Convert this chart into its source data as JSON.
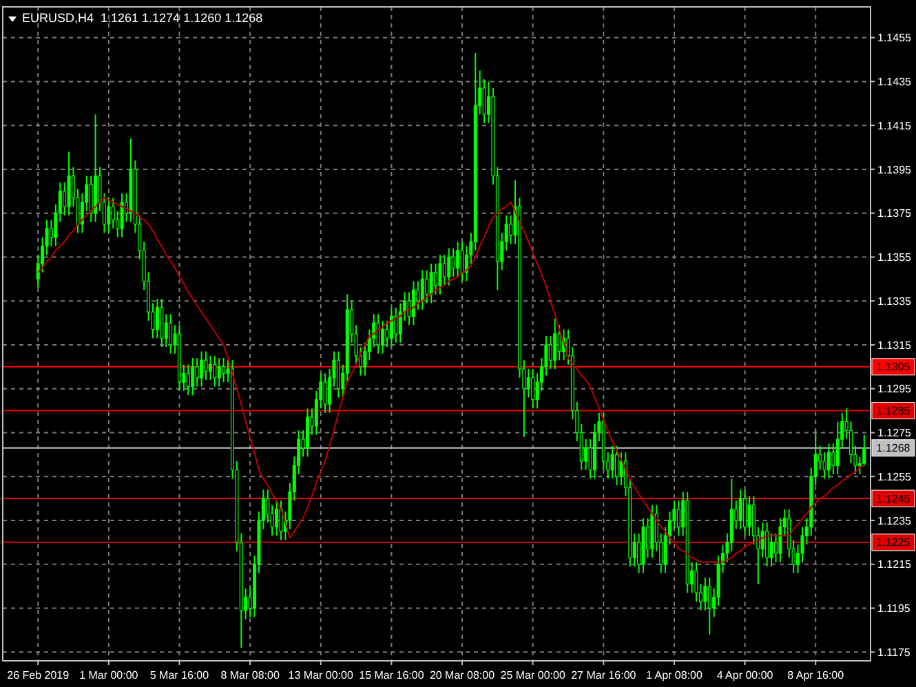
{
  "chart_data": {
    "type": "candlestick",
    "title": "EURUSD,H4  1.1261 1.1274 1.1260 1.1268",
    "categories": [
      "26 Feb 2019",
      null,
      null,
      null,
      null,
      null,
      null,
      null,
      null,
      null,
      null,
      null,
      null,
      null,
      null,
      null,
      "1 Mar 00:00",
      null,
      null,
      null,
      null,
      null,
      null,
      null,
      null,
      null,
      null,
      null,
      null,
      null,
      null,
      null,
      "5 Mar 16:00",
      null,
      null,
      null,
      null,
      null,
      null,
      null,
      null,
      null,
      null,
      null,
      null,
      null,
      null,
      null,
      "8 Mar 08:00",
      null,
      null,
      null,
      null,
      null,
      null,
      null,
      null,
      null,
      null,
      null,
      null,
      null,
      null,
      null,
      "13 Mar 00:00",
      null,
      null,
      null,
      null,
      null,
      null,
      null,
      null,
      null,
      null,
      null,
      null,
      null,
      null,
      null,
      "15 Mar 16:00",
      null,
      null,
      null,
      null,
      null,
      null,
      null,
      null,
      null,
      null,
      null,
      null,
      null,
      null,
      null,
      "20 Mar 08:00",
      null,
      null,
      null,
      null,
      null,
      null,
      null,
      null,
      null,
      null,
      null,
      null,
      null,
      null,
      null,
      "25 Mar 00:00",
      null,
      null,
      null,
      null,
      null,
      null,
      null,
      null,
      null,
      null,
      null,
      null,
      null,
      null,
      null,
      "27 Mar 16:00",
      null,
      null,
      null,
      null,
      null,
      null,
      null,
      null,
      null,
      null,
      null,
      null,
      null,
      null,
      null,
      "1 Apr 08:00",
      null,
      null,
      null,
      null,
      null,
      null,
      null,
      null,
      null,
      null,
      null,
      null,
      null,
      null,
      null,
      "4 Apr 00:00",
      null,
      null,
      null,
      null,
      null,
      null,
      null,
      null,
      null,
      null,
      null,
      null,
      null,
      null,
      null,
      "8 Apr 16:00",
      null,
      null,
      null,
      null,
      null,
      null,
      null,
      null,
      null,
      null,
      null
    ],
    "series": [
      {
        "color": "#00ff00",
        "ohlc": [
          [
            1.1345,
            1.1356,
            1.1341,
            1.1352
          ],
          [
            1.1352,
            1.1364,
            1.1348,
            1.136
          ],
          [
            1.136,
            1.1372,
            1.1356,
            1.1368
          ],
          [
            1.1368,
            1.1372,
            1.136,
            1.1364
          ],
          [
            1.1364,
            1.1379,
            1.136,
            1.1375
          ],
          [
            1.1375,
            1.1389,
            1.1371,
            1.1385
          ],
          [
            1.1385,
            1.1389,
            1.1374,
            1.1378
          ],
          [
            1.1378,
            1.1403,
            1.1374,
            1.1392
          ],
          [
            1.1392,
            1.1396,
            1.1378,
            1.1382
          ],
          [
            1.1382,
            1.1386,
            1.1366,
            1.137
          ],
          [
            1.137,
            1.1384,
            1.1366,
            1.138
          ],
          [
            1.138,
            1.1392,
            1.1376,
            1.1388
          ],
          [
            1.1388,
            1.1392,
            1.1371,
            1.1375
          ],
          [
            1.1375,
            1.142,
            1.1371,
            1.1392
          ],
          [
            1.1392,
            1.1396,
            1.1376,
            1.138
          ],
          [
            1.138,
            1.1384,
            1.1366,
            1.137
          ],
          [
            1.137,
            1.1382,
            1.1366,
            1.1378
          ],
          [
            1.1378,
            1.1382,
            1.1368,
            1.1372
          ],
          [
            1.1372,
            1.1376,
            1.1364,
            1.1368
          ],
          [
            1.1368,
            1.1384,
            1.1364,
            1.138
          ],
          [
            1.138,
            1.1384,
            1.1371,
            1.1375
          ],
          [
            1.1375,
            1.1409,
            1.1371,
            1.1395
          ],
          [
            1.1395,
            1.1399,
            1.1366,
            1.137
          ],
          [
            1.137,
            1.1374,
            1.1354,
            1.1358
          ],
          [
            1.1358,
            1.1362,
            1.134,
            1.1344
          ],
          [
            1.1344,
            1.1348,
            1.1326,
            1.133
          ],
          [
            1.133,
            1.1334,
            1.1318,
            1.1322
          ],
          [
            1.1322,
            1.1336,
            1.1318,
            1.1332
          ],
          [
            1.1332,
            1.1336,
            1.1314,
            1.1318
          ],
          [
            1.1318,
            1.1329,
            1.1314,
            1.1325
          ],
          [
            1.1325,
            1.1329,
            1.1311,
            1.1315
          ],
          [
            1.1315,
            1.1324,
            1.1311,
            1.132
          ],
          [
            1.132,
            1.1324,
            1.1294,
            1.1298
          ],
          [
            1.1298,
            1.1306,
            1.1294,
            1.1302
          ],
          [
            1.1302,
            1.1306,
            1.1292,
            1.1296
          ],
          [
            1.1296,
            1.1309,
            1.1292,
            1.1305
          ],
          [
            1.1305,
            1.1309,
            1.1296,
            1.13
          ],
          [
            1.13,
            1.1312,
            1.1296,
            1.1308
          ],
          [
            1.1308,
            1.1312,
            1.1299,
            1.1303
          ],
          [
            1.1303,
            1.131,
            1.1299,
            1.1306
          ],
          [
            1.1306,
            1.131,
            1.1296,
            1.13
          ],
          [
            1.13,
            1.1309,
            1.1296,
            1.1305
          ],
          [
            1.1305,
            1.1309,
            1.1298,
            1.1302
          ],
          [
            1.1302,
            1.1308,
            1.1298,
            1.1304
          ],
          [
            1.1304,
            1.1308,
            1.1254,
            1.1258
          ],
          [
            1.1258,
            1.1262,
            1.1221,
            1.1225
          ],
          [
            1.1225,
            1.1229,
            1.1177,
            1.1194
          ],
          [
            1.1194,
            1.1204,
            1.119,
            1.12
          ],
          [
            1.12,
            1.1204,
            1.1191,
            1.1195
          ],
          [
            1.1195,
            1.1219,
            1.1191,
            1.1215
          ],
          [
            1.1215,
            1.1239,
            1.1211,
            1.1235
          ],
          [
            1.1235,
            1.1249,
            1.1231,
            1.1245
          ],
          [
            1.1245,
            1.1249,
            1.1234,
            1.1238
          ],
          [
            1.1238,
            1.1242,
            1.1228,
            1.1232
          ],
          [
            1.1232,
            1.1244,
            1.1228,
            1.124
          ],
          [
            1.124,
            1.1244,
            1.1226,
            1.123
          ],
          [
            1.123,
            1.1239,
            1.1226,
            1.1235
          ],
          [
            1.1235,
            1.1252,
            1.1231,
            1.1248
          ],
          [
            1.1248,
            1.1264,
            1.1244,
            1.126
          ],
          [
            1.126,
            1.1276,
            1.1256,
            1.1272
          ],
          [
            1.1272,
            1.1276,
            1.1264,
            1.1268
          ],
          [
            1.1268,
            1.1286,
            1.1264,
            1.1282
          ],
          [
            1.1282,
            1.1286,
            1.1274,
            1.1278
          ],
          [
            1.1278,
            1.1294,
            1.1274,
            1.129
          ],
          [
            1.129,
            1.1302,
            1.1286,
            1.1298
          ],
          [
            1.1298,
            1.1302,
            1.1284,
            1.1288
          ],
          [
            1.1288,
            1.1304,
            1.1284,
            1.13
          ],
          [
            1.13,
            1.1312,
            1.1296,
            1.1308
          ],
          [
            1.1308,
            1.1312,
            1.1291,
            1.1295
          ],
          [
            1.1295,
            1.1306,
            1.1291,
            1.1302
          ],
          [
            1.1302,
            1.1338,
            1.1298,
            1.1331
          ],
          [
            1.1331,
            1.1335,
            1.1316,
            1.132
          ],
          [
            1.132,
            1.1324,
            1.1306,
            1.131
          ],
          [
            1.131,
            1.1314,
            1.1301,
            1.1305
          ],
          [
            1.1305,
            1.1316,
            1.1301,
            1.1312
          ],
          [
            1.1312,
            1.1322,
            1.1308,
            1.1318
          ],
          [
            1.1318,
            1.1329,
            1.1314,
            1.1325
          ],
          [
            1.1325,
            1.1329,
            1.1311,
            1.1315
          ],
          [
            1.1315,
            1.1326,
            1.1311,
            1.1322
          ],
          [
            1.1322,
            1.1326,
            1.1314,
            1.1318
          ],
          [
            1.1318,
            1.1332,
            1.1314,
            1.1328
          ],
          [
            1.1328,
            1.1332,
            1.1316,
            1.132
          ],
          [
            1.132,
            1.1334,
            1.1316,
            1.133
          ],
          [
            1.133,
            1.1339,
            1.1326,
            1.1335
          ],
          [
            1.1335,
            1.1339,
            1.1324,
            1.1328
          ],
          [
            1.1328,
            1.1344,
            1.1324,
            1.134
          ],
          [
            1.134,
            1.1344,
            1.1331,
            1.1335
          ],
          [
            1.1335,
            1.1349,
            1.1331,
            1.1345
          ],
          [
            1.1345,
            1.1349,
            1.1334,
            1.1338
          ],
          [
            1.1338,
            1.1352,
            1.1334,
            1.1348
          ],
          [
            1.1348,
            1.1352,
            1.1338,
            1.1342
          ],
          [
            1.1342,
            1.1356,
            1.1338,
            1.1352
          ],
          [
            1.1352,
            1.1356,
            1.1342,
            1.1346
          ],
          [
            1.1346,
            1.1359,
            1.1342,
            1.1355
          ],
          [
            1.1355,
            1.1359,
            1.1346,
            1.135
          ],
          [
            1.135,
            1.1362,
            1.1346,
            1.1358
          ],
          [
            1.1358,
            1.1362,
            1.1344,
            1.1348
          ],
          [
            1.1348,
            1.136,
            1.1344,
            1.1356
          ],
          [
            1.1356,
            1.1366,
            1.1352,
            1.1362
          ],
          [
            1.1362,
            1.1448,
            1.1358,
            1.1424
          ],
          [
            1.1424,
            1.144,
            1.142,
            1.1432
          ],
          [
            1.1432,
            1.1436,
            1.1416,
            1.142
          ],
          [
            1.142,
            1.1435,
            1.1416,
            1.1428
          ],
          [
            1.1428,
            1.1432,
            1.1388,
            1.1392
          ],
          [
            1.1392,
            1.1396,
            1.134,
            1.1353
          ],
          [
            1.1353,
            1.1366,
            1.1349,
            1.1362
          ],
          [
            1.1362,
            1.1374,
            1.1358,
            1.137
          ],
          [
            1.137,
            1.1374,
            1.1361,
            1.1365
          ],
          [
            1.1365,
            1.139,
            1.1361,
            1.1378
          ],
          [
            1.1378,
            1.1382,
            1.13,
            1.1304
          ],
          [
            1.1304,
            1.1308,
            1.1273,
            1.1295
          ],
          [
            1.1295,
            1.1304,
            1.1291,
            1.13
          ],
          [
            1.13,
            1.1304,
            1.1286,
            1.129
          ],
          [
            1.129,
            1.1302,
            1.1286,
            1.1298
          ],
          [
            1.1298,
            1.1309,
            1.1294,
            1.1305
          ],
          [
            1.1305,
            1.1319,
            1.1301,
            1.1315
          ],
          [
            1.1315,
            1.1319,
            1.1304,
            1.1308
          ],
          [
            1.1308,
            1.1327,
            1.1304,
            1.132
          ],
          [
            1.132,
            1.1324,
            1.1308,
            1.1312
          ],
          [
            1.1312,
            1.1322,
            1.1308,
            1.1318
          ],
          [
            1.1318,
            1.1322,
            1.1306,
            1.131
          ],
          [
            1.131,
            1.1314,
            1.1281,
            1.1285
          ],
          [
            1.1285,
            1.1289,
            1.1271,
            1.1275
          ],
          [
            1.1275,
            1.1279,
            1.1258,
            1.1262
          ],
          [
            1.1262,
            1.1272,
            1.1258,
            1.1268
          ],
          [
            1.1268,
            1.1272,
            1.1254,
            1.1258
          ],
          [
            1.1258,
            1.1279,
            1.1254,
            1.1275
          ],
          [
            1.1275,
            1.1284,
            1.1271,
            1.128
          ],
          [
            1.128,
            1.1284,
            1.1258,
            1.1262
          ],
          [
            1.1262,
            1.1266,
            1.1254,
            1.1258
          ],
          [
            1.1258,
            1.1269,
            1.1254,
            1.1265
          ],
          [
            1.1265,
            1.1269,
            1.1251,
            1.1255
          ],
          [
            1.1255,
            1.1266,
            1.1251,
            1.1262
          ],
          [
            1.1262,
            1.1266,
            1.1246,
            1.125
          ],
          [
            1.125,
            1.1254,
            1.1214,
            1.1218
          ],
          [
            1.1218,
            1.1229,
            1.1214,
            1.1225
          ],
          [
            1.1225,
            1.1229,
            1.1211,
            1.1215
          ],
          [
            1.1215,
            1.1236,
            1.1211,
            1.1232
          ],
          [
            1.1232,
            1.1236,
            1.1218,
            1.1222
          ],
          [
            1.1222,
            1.1242,
            1.1218,
            1.1238
          ],
          [
            1.1238,
            1.1242,
            1.1221,
            1.1225
          ],
          [
            1.1225,
            1.1229,
            1.1211,
            1.1215
          ],
          [
            1.1215,
            1.1232,
            1.1211,
            1.1228
          ],
          [
            1.1228,
            1.1239,
            1.1224,
            1.1235
          ],
          [
            1.1235,
            1.1244,
            1.1231,
            1.124
          ],
          [
            1.124,
            1.1244,
            1.1228,
            1.1232
          ],
          [
            1.1232,
            1.1248,
            1.1228,
            1.1244
          ],
          [
            1.1244,
            1.1248,
            1.1202,
            1.1206
          ],
          [
            1.1206,
            1.1216,
            1.1202,
            1.1212
          ],
          [
            1.1212,
            1.1216,
            1.1198,
            1.1202
          ],
          [
            1.1202,
            1.1206,
            1.1194,
            1.1198
          ],
          [
            1.1198,
            1.1209,
            1.1194,
            1.1205
          ],
          [
            1.1205,
            1.1209,
            1.1183,
            1.1195
          ],
          [
            1.1195,
            1.1204,
            1.1191,
            1.12
          ],
          [
            1.12,
            1.1219,
            1.1196,
            1.1215
          ],
          [
            1.1215,
            1.1224,
            1.1211,
            1.122
          ],
          [
            1.122,
            1.1229,
            1.1216,
            1.1225
          ],
          [
            1.1225,
            1.1254,
            1.1221,
            1.124
          ],
          [
            1.124,
            1.1244,
            1.1231,
            1.1235
          ],
          [
            1.1235,
            1.1249,
            1.1231,
            1.1245
          ],
          [
            1.1245,
            1.1249,
            1.1228,
            1.1232
          ],
          [
            1.1232,
            1.1246,
            1.1228,
            1.1242
          ],
          [
            1.1242,
            1.1246,
            1.1224,
            1.1228
          ],
          [
            1.1228,
            1.1232,
            1.1206,
            1.1222
          ],
          [
            1.1222,
            1.1234,
            1.1218,
            1.123
          ],
          [
            1.123,
            1.1234,
            1.1214,
            1.1218
          ],
          [
            1.1218,
            1.1229,
            1.1214,
            1.1225
          ],
          [
            1.1225,
            1.1229,
            1.1216,
            1.122
          ],
          [
            1.122,
            1.1236,
            1.1216,
            1.1232
          ],
          [
            1.1232,
            1.124,
            1.1228,
            1.1236
          ],
          [
            1.1236,
            1.124,
            1.1218,
            1.1222
          ],
          [
            1.1222,
            1.1226,
            1.1211,
            1.1215
          ],
          [
            1.1215,
            1.1224,
            1.1211,
            1.122
          ],
          [
            1.122,
            1.1232,
            1.1216,
            1.1228
          ],
          [
            1.1228,
            1.1236,
            1.1224,
            1.1232
          ],
          [
            1.1232,
            1.1259,
            1.1228,
            1.1255
          ],
          [
            1.1255,
            1.1276,
            1.1251,
            1.1265
          ],
          [
            1.1265,
            1.1269,
            1.1258,
            1.1262
          ],
          [
            1.1262,
            1.1266,
            1.1254,
            1.1258
          ],
          [
            1.1258,
            1.127,
            1.1254,
            1.1266
          ],
          [
            1.1266,
            1.127,
            1.1256,
            1.126
          ],
          [
            1.126,
            1.128,
            1.1256,
            1.1272
          ],
          [
            1.1272,
            1.1284,
            1.1268,
            1.128
          ],
          [
            1.128,
            1.1286,
            1.1272,
            1.1276
          ],
          [
            1.1276,
            1.128,
            1.1261,
            1.1265
          ],
          [
            1.1265,
            1.1269,
            1.1256,
            1.126
          ],
          [
            1.126,
            1.1264,
            1.1256,
            1.1261
          ],
          [
            1.1261,
            1.1274,
            1.126,
            1.1268
          ]
        ]
      },
      {
        "type": "line",
        "color": "#c00000",
        "values": [
          1.1348,
          1.135,
          1.1353,
          1.1355,
          1.1358,
          1.136,
          1.1362,
          1.1365,
          1.1367,
          1.137,
          1.1372,
          1.1374,
          1.1376,
          1.1378,
          1.138,
          1.1382,
          1.1381,
          1.138,
          1.1379,
          1.1378,
          1.1377,
          1.1376,
          1.1375,
          1.1373,
          1.1372,
          1.137,
          1.1367,
          1.1363,
          1.136,
          1.1356,
          1.1353,
          1.135,
          1.1346,
          1.1343,
          1.1339,
          1.1336,
          1.1333,
          1.133,
          1.1327,
          1.1324,
          1.1321,
          1.1318,
          1.1315,
          1.1309,
          1.1302,
          1.1295,
          1.1288,
          1.128,
          1.1273,
          1.1266,
          1.1258,
          1.1254,
          1.1251,
          1.1247,
          1.1244,
          1.124,
          1.1234,
          1.1227,
          1.123,
          1.1233,
          1.1236,
          1.1241,
          1.1246,
          1.1252,
          1.1257,
          1.1262,
          1.1269,
          1.1276,
          1.1284,
          1.1291,
          1.1298,
          1.1302,
          1.1306,
          1.1311,
          1.1315,
          1.1319,
          1.132,
          1.1322,
          1.1323,
          1.1325,
          1.1326,
          1.1327,
          1.1328,
          1.133,
          1.1331,
          1.1332,
          1.1334,
          1.1335,
          1.1337,
          1.1338,
          1.134,
          1.1341,
          1.1342,
          1.1344,
          1.1345,
          1.1346,
          1.1348,
          1.1349,
          1.1351,
          1.1355,
          1.136,
          1.1364,
          1.1369,
          1.1373,
          1.1375,
          1.1377,
          1.1378,
          1.138,
          1.1376,
          1.1371,
          1.1367,
          1.1362,
          1.1357,
          1.1352,
          1.1347,
          1.1342,
          1.1335,
          1.1329,
          1.1322,
          1.1316,
          1.1309,
          1.1306,
          1.1304,
          1.1301,
          1.1299,
          1.1296,
          1.1291,
          1.1286,
          1.1281,
          1.1276,
          1.1271,
          1.1267,
          1.1263,
          1.1258,
          1.1254,
          1.125,
          1.1247,
          1.1244,
          1.1241,
          1.1238,
          1.1235,
          1.1232,
          1.123,
          1.1227,
          1.1225,
          1.1222,
          1.1221,
          1.122,
          1.1218,
          1.1217,
          1.1216,
          1.1216,
          1.1216,
          1.1216,
          1.1216,
          1.1216,
          1.1217,
          1.1218,
          1.122,
          1.1221,
          1.1223,
          1.1224,
          1.1225,
          1.1226,
          1.1227,
          1.1228,
          1.1228,
          1.1228,
          1.1228,
          1.1228,
          1.1228,
          1.1231,
          1.1233,
          1.1236,
          1.1238,
          1.1241,
          1.1243,
          1.1245,
          1.1246,
          1.1248,
          1.125,
          1.1251,
          1.1253,
          1.1254,
          1.1256,
          1.1257,
          1.1259,
          1.126
        ]
      }
    ],
    "ylim": [
      1.1171,
      1.1469
    ],
    "yticks": [
      1.1175,
      1.1195,
      1.1215,
      1.1235,
      1.1255,
      1.1275,
      1.1295,
      1.1315,
      1.1335,
      1.1355,
      1.1375,
      1.1395,
      1.1415,
      1.1435,
      1.1455
    ],
    "grid": true,
    "ref_lines": [
      {
        "axis": "y",
        "value": 1.1305,
        "label": "1.1305",
        "color": "#ff0000"
      },
      {
        "axis": "y",
        "value": 1.1285,
        "label": "1.1285",
        "color": "#e00000"
      },
      {
        "axis": "y",
        "value": 1.1268,
        "label": "1.1268",
        "color": "#c0c0c0"
      },
      {
        "axis": "y",
        "value": 1.1245,
        "label": "1.1245",
        "color": "#e00000"
      },
      {
        "axis": "y",
        "value": 1.1225,
        "label": "1.1225",
        "color": "#e00000"
      }
    ]
  }
}
